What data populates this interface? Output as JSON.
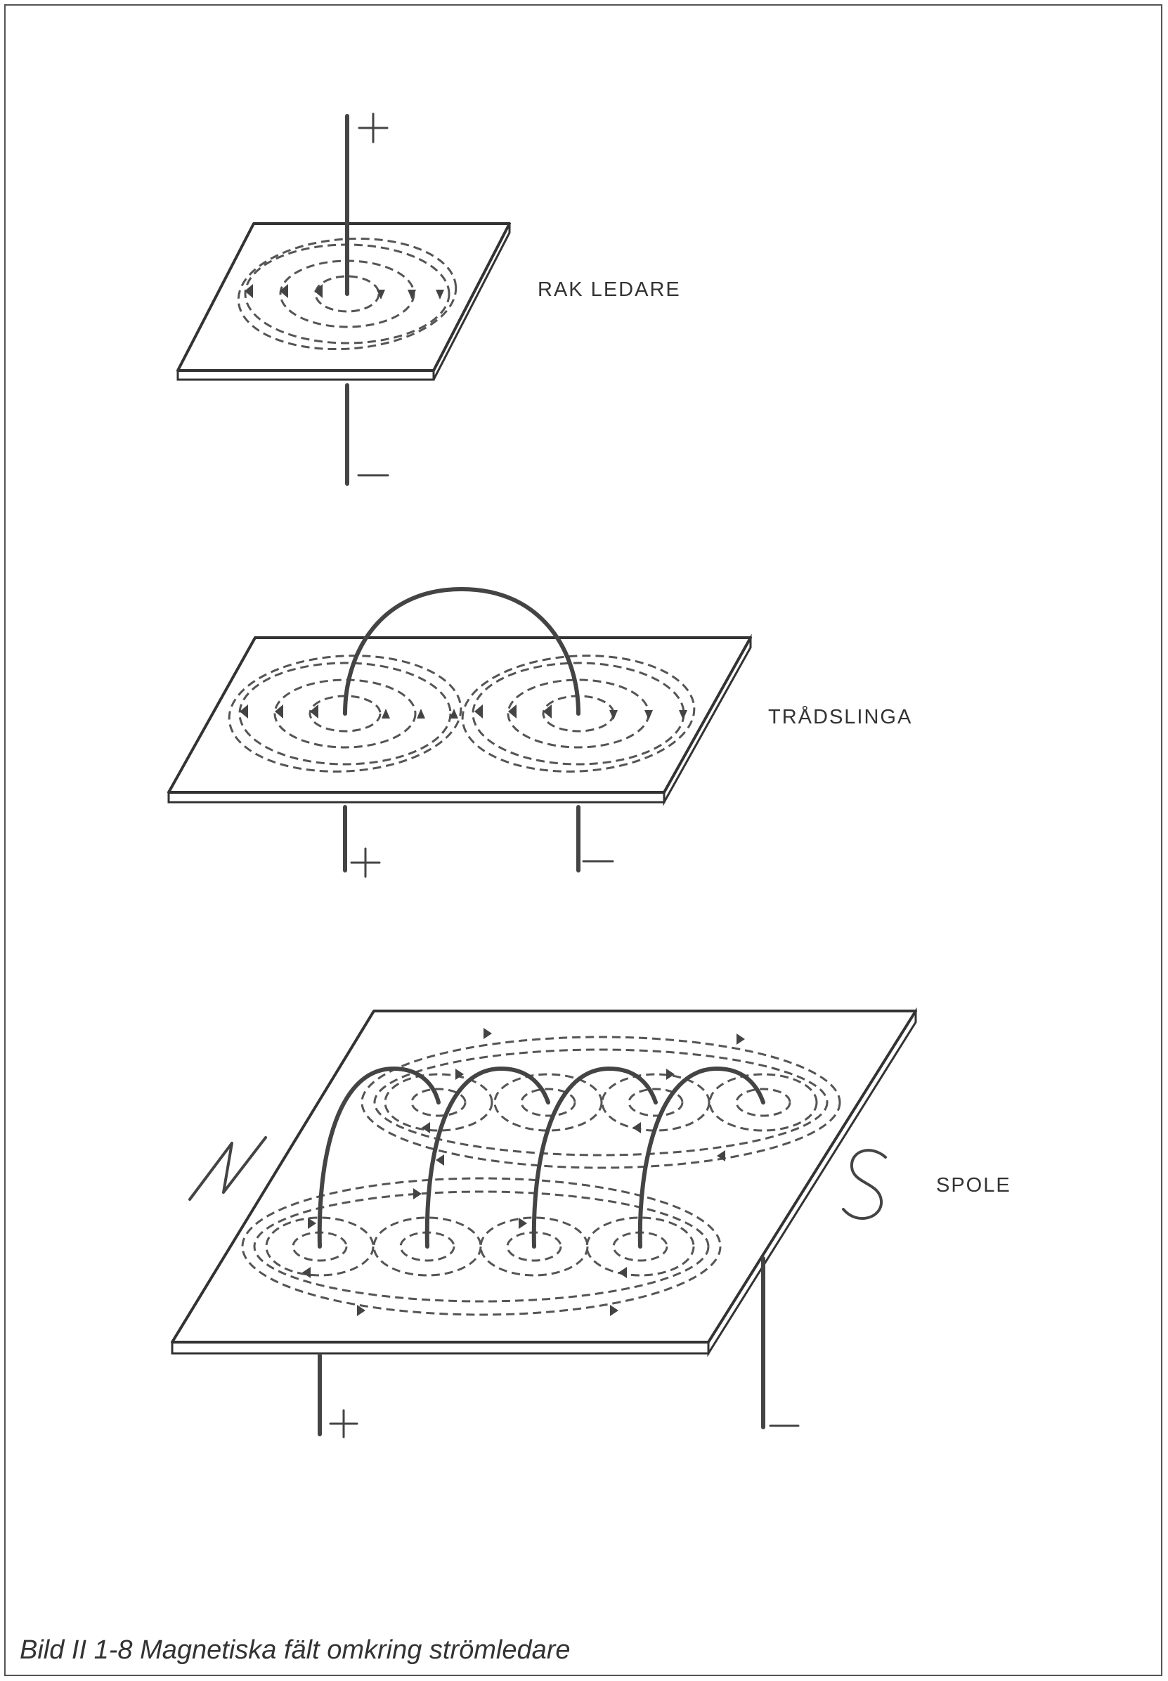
{
  "labels": {
    "straight": "RAK LEDARE",
    "loop": "TRÅDSLINGA",
    "coil": "SPOLE"
  },
  "caption": "Bild II 1-8  Magnetiska fält omkring strömledare"
}
